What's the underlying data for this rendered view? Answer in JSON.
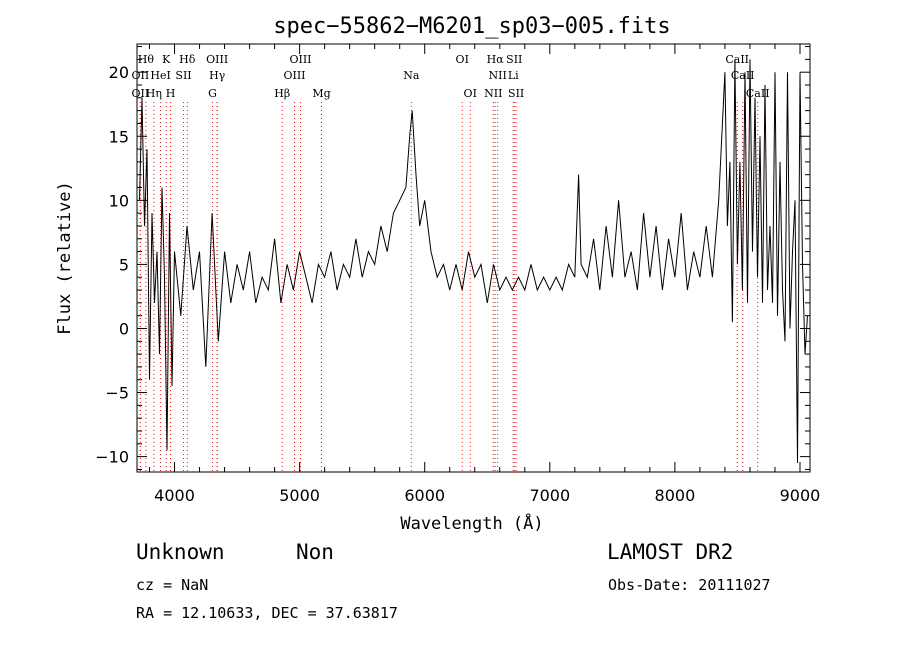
{
  "chart_data": {
    "type": "line",
    "title": "spec−55862−M6201_sp03−005.fits",
    "xlabel": "Wavelength (Å)",
    "ylabel": "Flux (relative)",
    "xlim": [
      3700,
      9080
    ],
    "ylim": [
      -11.2,
      22.2
    ],
    "xticks": [
      4000,
      5000,
      6000,
      7000,
      8000,
      9000
    ],
    "yticks": [
      -10,
      -5,
      0,
      5,
      10,
      15,
      20
    ],
    "ytick_labels": [
      "−10",
      "−5",
      "0",
      "5",
      "10",
      "15",
      "20"
    ],
    "x": [
      3720,
      3740,
      3760,
      3780,
      3800,
      3820,
      3840,
      3860,
      3880,
      3900,
      3920,
      3940,
      3960,
      3980,
      4000,
      4050,
      4100,
      4150,
      4200,
      4250,
      4300,
      4350,
      4400,
      4450,
      4500,
      4550,
      4600,
      4650,
      4700,
      4750,
      4800,
      4850,
      4900,
      4950,
      5000,
      5050,
      5100,
      5150,
      5200,
      5250,
      5300,
      5350,
      5400,
      5450,
      5500,
      5550,
      5600,
      5650,
      5700,
      5750,
      5800,
      5850,
      5880,
      5900,
      5930,
      5960,
      6000,
      6050,
      6100,
      6150,
      6200,
      6250,
      6300,
      6350,
      6400,
      6450,
      6500,
      6550,
      6600,
      6650,
      6700,
      6750,
      6800,
      6850,
      6900,
      6950,
      7000,
      7050,
      7100,
      7150,
      7200,
      7230,
      7250,
      7300,
      7350,
      7400,
      7450,
      7500,
      7550,
      7600,
      7650,
      7700,
      7750,
      7800,
      7850,
      7900,
      7950,
      8000,
      8050,
      8100,
      8150,
      8200,
      8250,
      8300,
      8350,
      8400,
      8420,
      8440,
      8460,
      8480,
      8500,
      8520,
      8540,
      8560,
      8580,
      8600,
      8620,
      8640,
      8660,
      8680,
      8700,
      8720,
      8740,
      8760,
      8780,
      8800,
      8820,
      8840,
      8860,
      8880,
      8900,
      8920,
      8940,
      8960,
      8980,
      9000,
      9020,
      9040,
      9060
    ],
    "y": [
      10,
      18,
      8,
      14,
      -4,
      9,
      2,
      6,
      -2,
      11,
      4,
      -9.5,
      9,
      -4.5,
      6,
      1,
      8,
      3,
      6,
      -3,
      9,
      -1,
      6,
      2,
      5,
      3,
      6,
      2,
      4,
      3,
      7,
      2,
      5,
      3,
      6,
      4,
      2,
      5,
      4,
      6,
      3,
      5,
      4,
      7,
      4,
      6,
      5,
      8,
      6,
      9,
      10,
      11,
      15,
      17,
      12,
      8,
      10,
      6,
      4,
      5,
      3,
      5,
      3,
      6,
      4,
      5,
      2,
      5,
      3,
      4,
      3,
      4,
      3,
      5,
      3,
      4,
      3,
      4,
      3,
      5,
      4,
      12,
      5,
      4,
      7,
      3,
      8,
      4,
      10,
      4,
      6,
      3,
      9,
      4,
      8,
      3,
      7,
      4,
      9,
      3,
      6,
      4,
      8,
      4,
      10,
      20,
      8,
      13,
      0.5,
      21,
      5,
      13,
      3,
      20,
      2,
      21,
      6,
      18,
      4,
      15,
      2,
      19,
      3,
      8,
      2,
      20,
      1,
      13,
      3,
      -1,
      20,
      0,
      6,
      10,
      -10.5,
      20,
      5,
      -2,
      1
    ],
    "line_markers": [
      {
        "row": 0,
        "x": 3771,
        "label": "Hθ"
      },
      {
        "row": 0,
        "x": 3934,
        "label": "K"
      },
      {
        "row": 0,
        "x": 4102,
        "label": "Hδ"
      },
      {
        "row": 0,
        "x": 4341,
        "label": "OIII"
      },
      {
        "row": 0,
        "x": 5007,
        "label": "OIII"
      },
      {
        "row": 0,
        "x": 6300,
        "label": "OI"
      },
      {
        "row": 0,
        "x": 6563,
        "label": "Hα"
      },
      {
        "row": 0,
        "x": 6716,
        "label": "SII"
      },
      {
        "row": 0,
        "x": 8498,
        "label": "CaII"
      },
      {
        "row": 1,
        "x": 3727,
        "label": "OII"
      },
      {
        "row": 1,
        "x": 3889,
        "label": "HeI"
      },
      {
        "row": 1,
        "x": 4072,
        "label": "SII"
      },
      {
        "row": 1,
        "x": 4341,
        "label": "Hγ"
      },
      {
        "row": 1,
        "x": 4959,
        "label": "OIII"
      },
      {
        "row": 1,
        "x": 5893,
        "label": "Na"
      },
      {
        "row": 1,
        "x": 6583,
        "label": "NII"
      },
      {
        "row": 1,
        "x": 6708,
        "label": "Li"
      },
      {
        "row": 1,
        "x": 8542,
        "label": "CaII"
      },
      {
        "row": 2,
        "x": 3727,
        "label": "OII"
      },
      {
        "row": 2,
        "x": 3835,
        "label": "Hη"
      },
      {
        "row": 2,
        "x": 3968,
        "label": "H"
      },
      {
        "row": 2,
        "x": 4304,
        "label": "G"
      },
      {
        "row": 2,
        "x": 4861,
        "label": "Hβ"
      },
      {
        "row": 2,
        "x": 5175,
        "label": "Mg"
      },
      {
        "row": 2,
        "x": 6364,
        "label": "OI"
      },
      {
        "row": 2,
        "x": 6548,
        "label": "NII"
      },
      {
        "row": 2,
        "x": 6731,
        "label": "SII"
      },
      {
        "row": 2,
        "x": 8662,
        "label": "CaII"
      }
    ]
  },
  "info": {
    "class_label": "Unknown",
    "subclass_label": "Non",
    "survey": "LAMOST DR2",
    "cz": "cz = NaN",
    "obs_date": "Obs-Date: 20111027",
    "coords": "RA =  12.10633, DEC =  37.63817"
  }
}
